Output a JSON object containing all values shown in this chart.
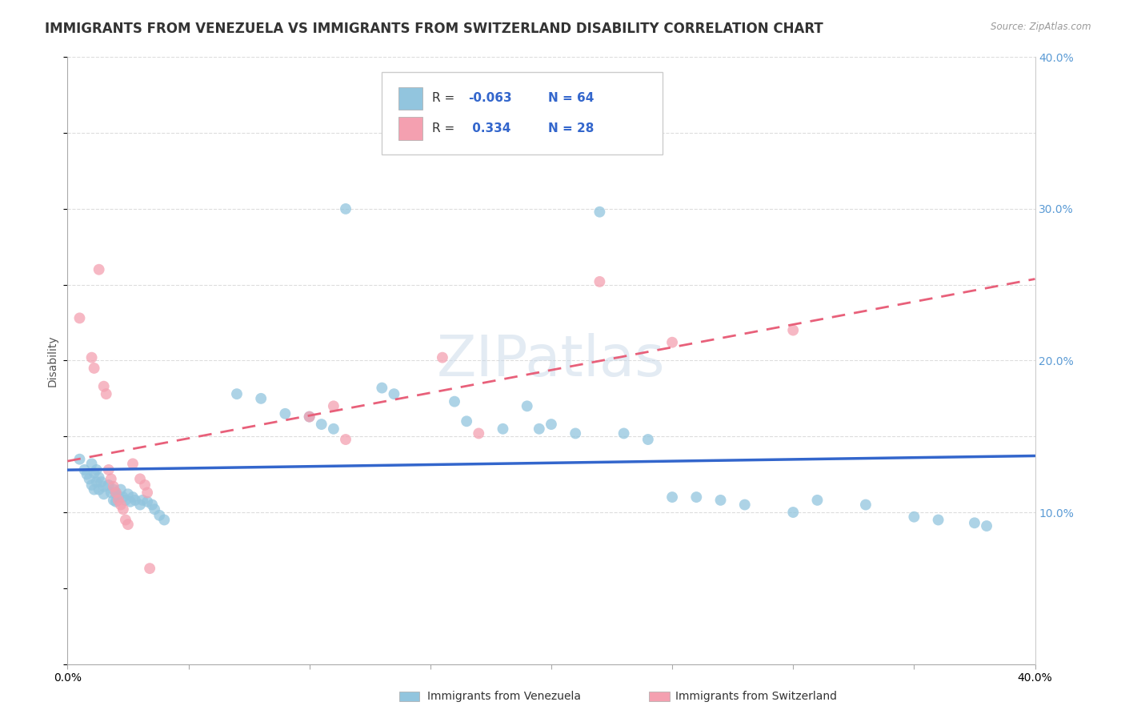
{
  "title": "IMMIGRANTS FROM VENEZUELA VS IMMIGRANTS FROM SWITZERLAND DISABILITY CORRELATION CHART",
  "source": "Source: ZipAtlas.com",
  "ylabel": "Disability",
  "xlim": [
    0.0,
    0.4
  ],
  "ylim": [
    0.0,
    0.4
  ],
  "color_venezuela": "#92C5DE",
  "color_switzerland": "#F4A0B0",
  "color_trend_blue": "#3366CC",
  "color_trend_pink": "#E8607A",
  "watermark": "ZIPatlas",
  "watermark_color": "#C8D8E8",
  "blue_scatter": [
    [
      0.005,
      0.135
    ],
    [
      0.007,
      0.128
    ],
    [
      0.008,
      0.125
    ],
    [
      0.009,
      0.122
    ],
    [
      0.01,
      0.132
    ],
    [
      0.01,
      0.118
    ],
    [
      0.011,
      0.126
    ],
    [
      0.011,
      0.115
    ],
    [
      0.012,
      0.128
    ],
    [
      0.012,
      0.12
    ],
    [
      0.013,
      0.123
    ],
    [
      0.013,
      0.115
    ],
    [
      0.014,
      0.12
    ],
    [
      0.015,
      0.117
    ],
    [
      0.015,
      0.112
    ],
    [
      0.017,
      0.118
    ],
    [
      0.018,
      0.113
    ],
    [
      0.019,
      0.115
    ],
    [
      0.019,
      0.108
    ],
    [
      0.02,
      0.113
    ],
    [
      0.02,
      0.107
    ],
    [
      0.021,
      0.11
    ],
    [
      0.022,
      0.115
    ],
    [
      0.023,
      0.11
    ],
    [
      0.024,
      0.108
    ],
    [
      0.025,
      0.112
    ],
    [
      0.026,
      0.107
    ],
    [
      0.027,
      0.11
    ],
    [
      0.028,
      0.108
    ],
    [
      0.03,
      0.105
    ],
    [
      0.031,
      0.108
    ],
    [
      0.033,
      0.107
    ],
    [
      0.035,
      0.105
    ],
    [
      0.036,
      0.102
    ],
    [
      0.038,
      0.098
    ],
    [
      0.04,
      0.095
    ],
    [
      0.07,
      0.178
    ],
    [
      0.08,
      0.175
    ],
    [
      0.09,
      0.165
    ],
    [
      0.1,
      0.163
    ],
    [
      0.105,
      0.158
    ],
    [
      0.11,
      0.155
    ],
    [
      0.115,
      0.3
    ],
    [
      0.13,
      0.182
    ],
    [
      0.135,
      0.178
    ],
    [
      0.16,
      0.173
    ],
    [
      0.165,
      0.16
    ],
    [
      0.18,
      0.155
    ],
    [
      0.19,
      0.17
    ],
    [
      0.195,
      0.155
    ],
    [
      0.2,
      0.158
    ],
    [
      0.21,
      0.152
    ],
    [
      0.22,
      0.298
    ],
    [
      0.23,
      0.152
    ],
    [
      0.24,
      0.148
    ],
    [
      0.25,
      0.11
    ],
    [
      0.26,
      0.11
    ],
    [
      0.27,
      0.108
    ],
    [
      0.28,
      0.105
    ],
    [
      0.3,
      0.1
    ],
    [
      0.31,
      0.108
    ],
    [
      0.33,
      0.105
    ],
    [
      0.35,
      0.097
    ],
    [
      0.36,
      0.095
    ],
    [
      0.375,
      0.093
    ],
    [
      0.38,
      0.091
    ]
  ],
  "pink_scatter": [
    [
      0.005,
      0.228
    ],
    [
      0.01,
      0.202
    ],
    [
      0.011,
      0.195
    ],
    [
      0.013,
      0.26
    ],
    [
      0.015,
      0.183
    ],
    [
      0.016,
      0.178
    ],
    [
      0.017,
      0.128
    ],
    [
      0.018,
      0.122
    ],
    [
      0.019,
      0.117
    ],
    [
      0.02,
      0.113
    ],
    [
      0.021,
      0.108
    ],
    [
      0.022,
      0.105
    ],
    [
      0.023,
      0.102
    ],
    [
      0.024,
      0.095
    ],
    [
      0.025,
      0.092
    ],
    [
      0.027,
      0.132
    ],
    [
      0.03,
      0.122
    ],
    [
      0.032,
      0.118
    ],
    [
      0.033,
      0.113
    ],
    [
      0.034,
      0.063
    ],
    [
      0.1,
      0.163
    ],
    [
      0.11,
      0.17
    ],
    [
      0.115,
      0.148
    ],
    [
      0.155,
      0.202
    ],
    [
      0.17,
      0.152
    ],
    [
      0.22,
      0.252
    ],
    [
      0.25,
      0.212
    ],
    [
      0.3,
      0.22
    ]
  ],
  "grid_color": "#DDDDDD",
  "bg_color": "#FFFFFF",
  "title_fontsize": 12,
  "label_fontsize": 10
}
